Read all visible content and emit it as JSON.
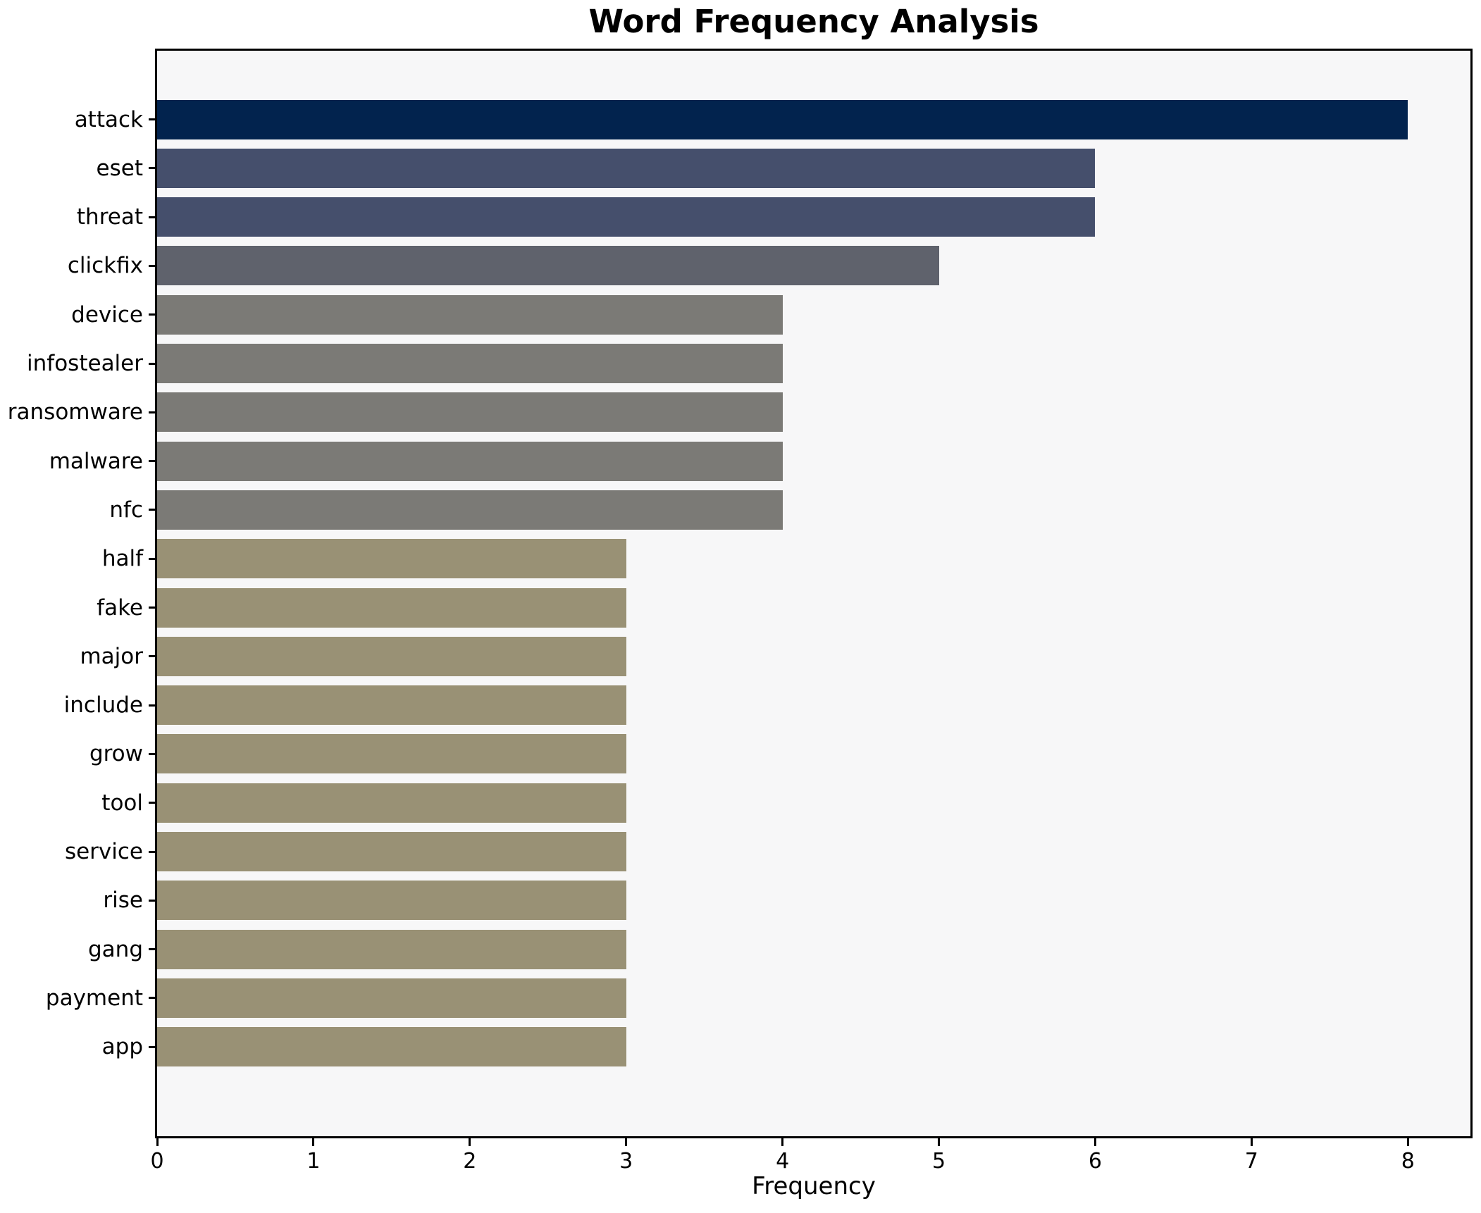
{
  "chart_data": {
    "type": "bar",
    "orientation": "horizontal",
    "title": "Word Frequency Analysis",
    "xlabel": "Frequency",
    "ylabel": "",
    "categories": [
      "attack",
      "eset",
      "threat",
      "clickfix",
      "device",
      "infostealer",
      "ransomware",
      "malware",
      "nfc",
      "half",
      "fake",
      "major",
      "include",
      "grow",
      "tool",
      "service",
      "rise",
      "gang",
      "payment",
      "app"
    ],
    "values": [
      8,
      6,
      6,
      5,
      4,
      4,
      4,
      4,
      4,
      3,
      3,
      3,
      3,
      3,
      3,
      3,
      3,
      3,
      3,
      3
    ],
    "bar_colors": [
      "#02234e",
      "#454f6c",
      "#454f6c",
      "#5f626c",
      "#7b7a76",
      "#7b7a76",
      "#7b7a76",
      "#7b7a76",
      "#7b7a76",
      "#999175",
      "#999175",
      "#999175",
      "#999175",
      "#999175",
      "#999175",
      "#999175",
      "#999175",
      "#999175",
      "#999175",
      "#999175"
    ],
    "xlim": [
      0,
      8.4
    ],
    "x_ticks": [
      0,
      1,
      2,
      3,
      4,
      5,
      6,
      7,
      8
    ],
    "grid": false,
    "legend_position": "none",
    "plot_background": "#f7f7f8",
    "figure_background": "#ffffff",
    "axis_color": "#000000"
  }
}
